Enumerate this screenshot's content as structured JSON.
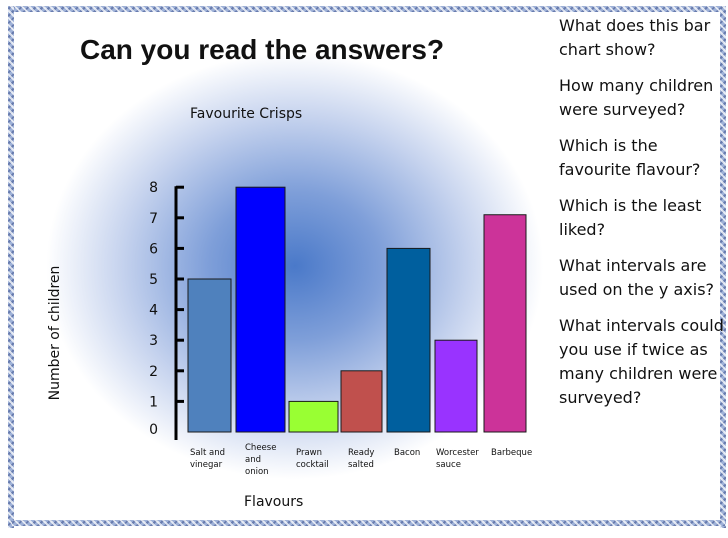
{
  "slide": {
    "title": "Can you read the answers?"
  },
  "questions": [
    "What does this bar chart show?",
    "How many children were surveyed?",
    "Which is the favourite flavour?",
    "Which is the least liked?",
    "What intervals are used on the y axis?",
    "What intervals could you use if twice as many children were surveyed?"
  ],
  "chart_data": {
    "type": "bar",
    "title": "Favourite Crisps",
    "xlabel": "Flavours",
    "ylabel": "Number of children",
    "categories": [
      [
        "Salt and",
        "vinegar"
      ],
      [
        "Cheese",
        "and",
        "onion"
      ],
      [
        "Prawn",
        "cocktail"
      ],
      [
        "Ready",
        "salted"
      ],
      [
        "Bacon"
      ],
      [
        "Worcester",
        "sauce"
      ],
      [
        "Barbeque"
      ]
    ],
    "values": [
      5,
      8,
      1,
      2,
      6,
      3,
      7.1
    ],
    "colors": [
      "#4f81bd",
      "#0000ff",
      "#99ff33",
      "#c0504d",
      "#005f9e",
      "#9933ff",
      "#cc3399"
    ],
    "yticks": [
      0,
      1,
      2,
      3,
      4,
      5,
      6,
      7,
      8
    ],
    "ylim": [
      0,
      8
    ],
    "grid": false,
    "legend": "none"
  }
}
